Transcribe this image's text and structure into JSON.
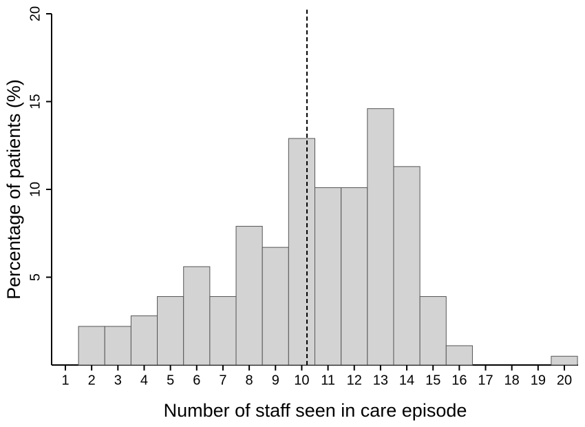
{
  "chart_data": {
    "type": "bar",
    "x_label": "Number of staff seen in care episode",
    "y_label": "Percentage of patients (%)",
    "categories": [
      "1",
      "2",
      "3",
      "4",
      "5",
      "6",
      "7",
      "8",
      "9",
      "10",
      "11",
      "12",
      "13",
      "14",
      "15",
      "16",
      "17",
      "18",
      "19",
      "20"
    ],
    "values": [
      0,
      2.2,
      2.2,
      2.8,
      3.9,
      5.6,
      3.9,
      7.9,
      6.7,
      12.9,
      10.1,
      10.1,
      14.6,
      11.3,
      3.9,
      1.1,
      0,
      0,
      0,
      0.5
    ],
    "color": "#d3d3d3",
    "ylim": [
      0,
      20
    ],
    "yticks": [
      5,
      10,
      15,
      20
    ],
    "vline": 10.2,
    "vline_style": "dashed"
  }
}
